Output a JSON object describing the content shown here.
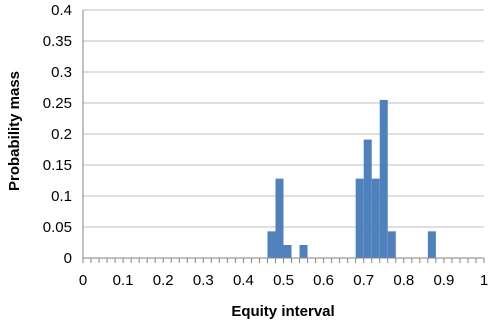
{
  "chart_data": {
    "type": "bar",
    "xlabel": "Equity interval",
    "ylabel": "Probability mass",
    "xlim": [
      0,
      1
    ],
    "ylim": [
      0,
      0.4
    ],
    "x_ticks": [
      "0",
      "0.1",
      "0.2",
      "0.3",
      "0.4",
      "0.5",
      "0.6",
      "0.7",
      "0.8",
      "0.9",
      "1"
    ],
    "y_ticks": [
      "0",
      "0.05",
      "0.1",
      "0.15",
      "0.2",
      "0.25",
      "0.3",
      "0.35",
      "0.4"
    ],
    "bin_width": 0.02,
    "bins": [
      {
        "x": 0.46,
        "value": 0.043
      },
      {
        "x": 0.48,
        "value": 0.128
      },
      {
        "x": 0.5,
        "value": 0.021
      },
      {
        "x": 0.54,
        "value": 0.021
      },
      {
        "x": 0.68,
        "value": 0.128
      },
      {
        "x": 0.7,
        "value": 0.191
      },
      {
        "x": 0.72,
        "value": 0.128
      },
      {
        "x": 0.74,
        "value": 0.255
      },
      {
        "x": 0.76,
        "value": 0.043
      },
      {
        "x": 0.86,
        "value": 0.043
      }
    ],
    "grid": true,
    "legend": false,
    "bar_color": "#4F81BD"
  }
}
